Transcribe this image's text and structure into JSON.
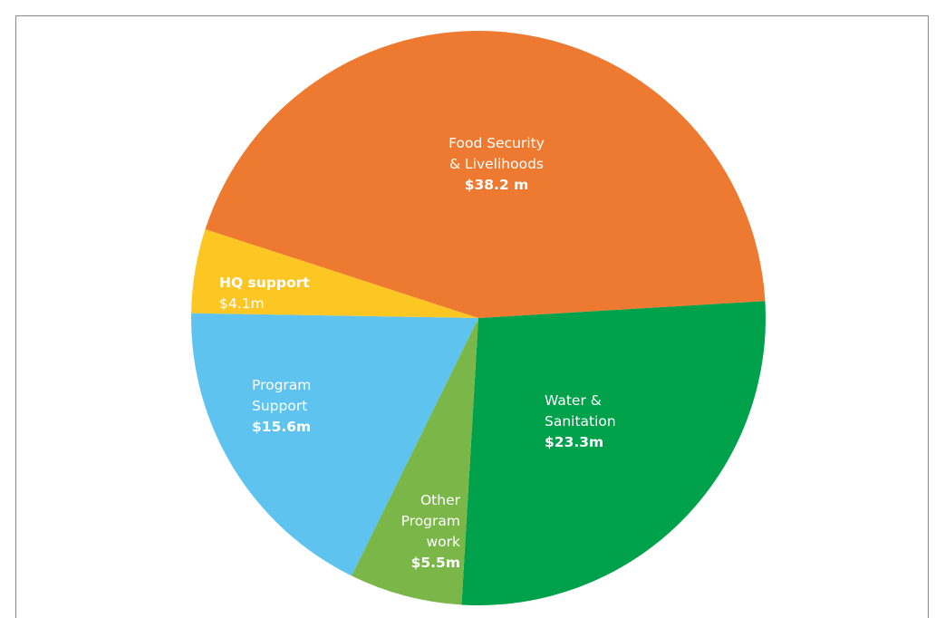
{
  "chart_data": {
    "type": "pie",
    "title": "",
    "slices": [
      {
        "label_lines": [
          "Food Security",
          "& Livelihoods"
        ],
        "value_label": "$38.2 m",
        "value": 38.2,
        "color": "#ed7a30",
        "label_anchor": "middle"
      },
      {
        "label_lines": [
          "Water &",
          "Sanitation"
        ],
        "value_label": "$23.3m",
        "value": 23.3,
        "color": "#00a14b",
        "label_anchor": "start"
      },
      {
        "label_lines": [
          "Other",
          "Program",
          "work"
        ],
        "value_label": "$5.5m",
        "value": 5.5,
        "color": "#7ab648",
        "label_anchor": "end"
      },
      {
        "label_lines": [
          "Program",
          "Support"
        ],
        "value_label": "$15.6m",
        "value": 15.6,
        "color": "#5ec4ef",
        "label_anchor": "start"
      },
      {
        "label_lines": [
          "HQ support"
        ],
        "value_label": "$4.1m",
        "value": 4.1,
        "color": "#fcc623",
        "label_anchor": "start",
        "label_bold_first": true,
        "value_not_bold": true
      }
    ]
  }
}
